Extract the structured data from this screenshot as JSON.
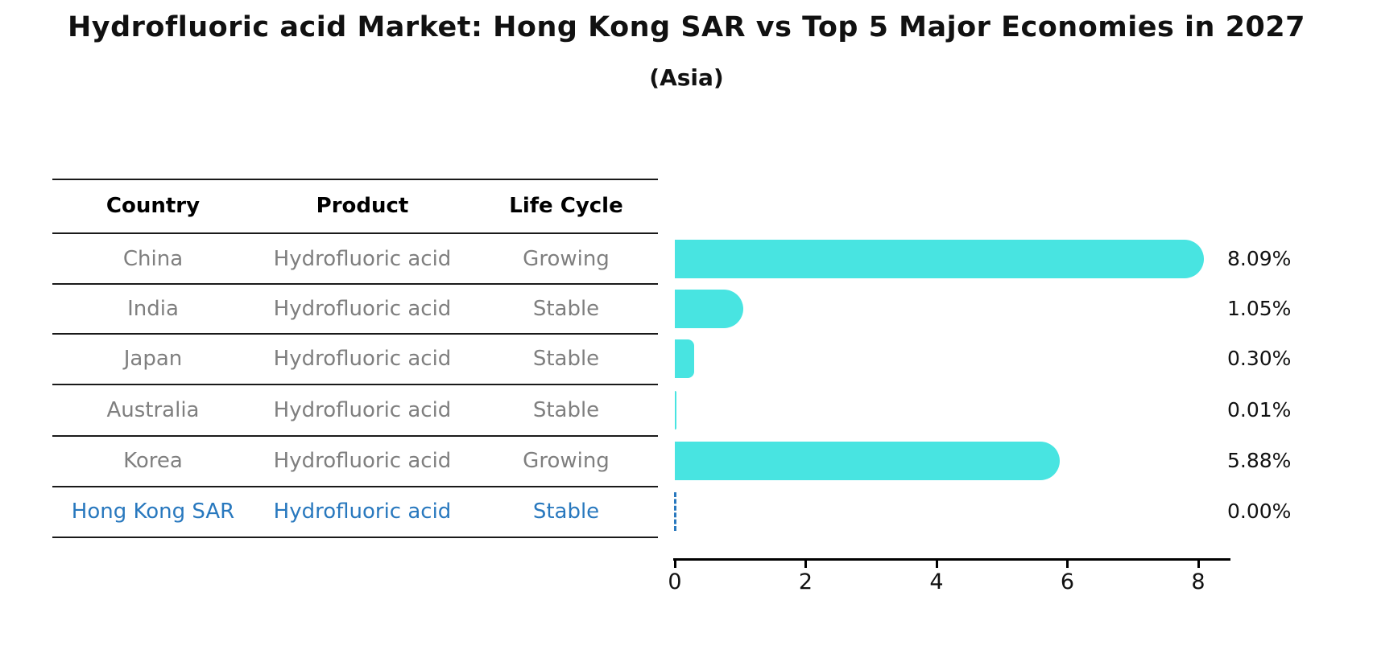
{
  "title": "Hydrofluoric acid Market: Hong Kong SAR vs Top 5 Major Economies in 2027",
  "subtitle": "(Asia)",
  "table": {
    "headers": [
      "Country",
      "Product",
      "Life Cycle"
    ],
    "rows": [
      {
        "country": "China",
        "product": "Hydrofluoric acid",
        "life_cycle": "Growing",
        "highlight": false
      },
      {
        "country": "India",
        "product": "Hydrofluoric acid",
        "life_cycle": "Stable",
        "highlight": false
      },
      {
        "country": "Japan",
        "product": "Hydrofluoric acid",
        "life_cycle": "Stable",
        "highlight": false
      },
      {
        "country": "Australia",
        "product": "Hydrofluoric acid",
        "life_cycle": "Stable",
        "highlight": false
      },
      {
        "country": "Korea",
        "product": "Hydrofluoric acid",
        "life_cycle": "Growing",
        "highlight": false
      },
      {
        "country": "Hong Kong SAR",
        "product": "Hydrofluoric acid",
        "life_cycle": "Stable",
        "highlight": true
      }
    ]
  },
  "chart_data": {
    "type": "bar",
    "orientation": "horizontal",
    "title": "Hydrofluoric acid Market: Hong Kong SAR vs Top 5 Major Economies in 2027",
    "subtitle": "(Asia)",
    "categories": [
      "China",
      "India",
      "Japan",
      "Australia",
      "Korea",
      "Hong Kong SAR"
    ],
    "values": [
      8.09,
      1.05,
      0.3,
      0.01,
      5.88,
      0.0
    ],
    "value_labels": [
      "8.09%",
      "1.05%",
      "0.30%",
      "0.01%",
      "5.88%",
      "0.00%"
    ],
    "xlabel": "",
    "ylabel": "",
    "xlim": [
      0,
      8.5
    ],
    "xticks": [
      0,
      2,
      4,
      6,
      8
    ],
    "xtick_labels": [
      "0",
      "2",
      "4",
      "6",
      "8"
    ],
    "grid": false,
    "legend": false,
    "bar_style": "rounded-right-cap",
    "highlight_category": "Hong Kong SAR",
    "highlight_style": "dashed-outline-zero-width-bar"
  },
  "colors": {
    "bar": "#48E4E1",
    "highlight": "#2878BE",
    "row_text": "#7F7F7F",
    "header_text": "#000000",
    "value_text": "#111111",
    "line": "#1A1A1A",
    "background": "#FFFFFF"
  }
}
